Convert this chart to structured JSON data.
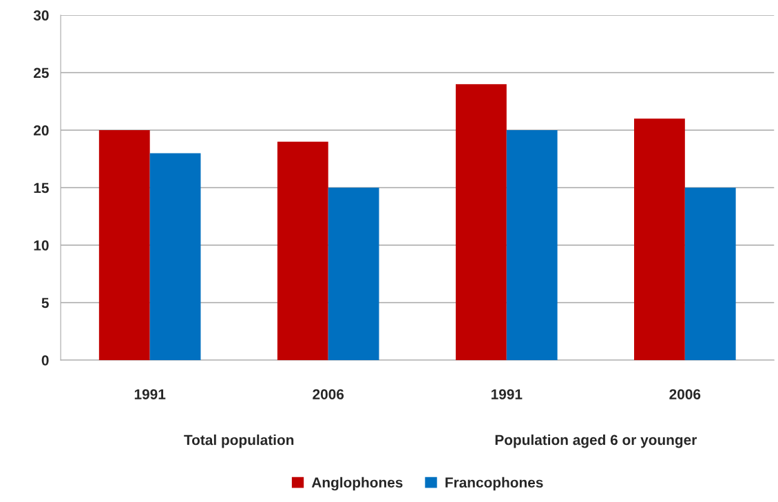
{
  "chart_data": {
    "type": "bar",
    "categories": [
      "1991",
      "2006",
      "1991",
      "2006"
    ],
    "annotations": [
      "Total population",
      "Population aged 6 or younger"
    ],
    "series": [
      {
        "name": "Anglophones",
        "color": "#c00000",
        "values": [
          20,
          19,
          24,
          21
        ]
      },
      {
        "name": "Francophones",
        "color": "#0070c0",
        "values": [
          18,
          15,
          20,
          15
        ]
      }
    ],
    "ylim": [
      0,
      30
    ],
    "yticks": [
      0,
      5,
      10,
      15,
      20,
      25,
      30
    ],
    "grid": "y",
    "legend": "bottom"
  }
}
